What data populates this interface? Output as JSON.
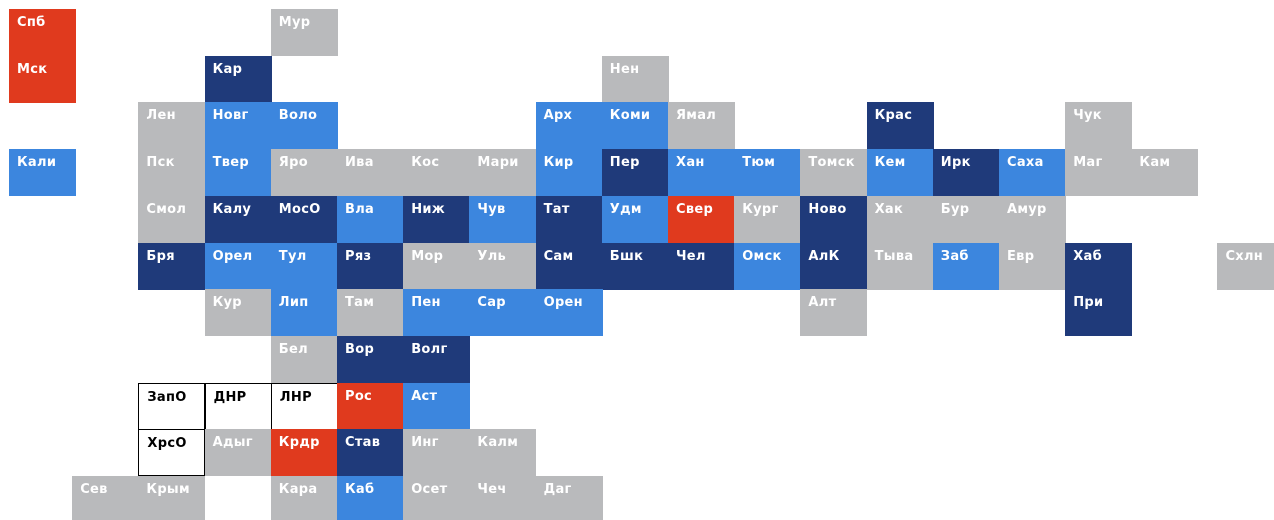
{
  "regions": [
    {
      "label": "Спб",
      "color": "#e03a1e"
    },
    {
      "label": "Мур",
      "color": "#b9babc"
    },
    {
      "label": "Мск",
      "color": "#e03a1e"
    },
    {
      "label": "Кар",
      "color": "#1f3a7a"
    },
    {
      "label": "Нен",
      "color": "#b9babc"
    },
    {
      "label": "Лен",
      "color": "#b9babc"
    },
    {
      "label": "Новг",
      "color": "#3c86de"
    },
    {
      "label": "Воло",
      "color": "#3c86de"
    },
    {
      "label": "Арх",
      "color": "#3c86de"
    },
    {
      "label": "Коми",
      "color": "#3c86de"
    },
    {
      "label": "Ямал",
      "color": "#b9babc"
    },
    {
      "label": "Крас",
      "color": "#1f3a7a"
    },
    {
      "label": "Чук",
      "color": "#b9babc"
    },
    {
      "label": "Кали",
      "color": "#3c86de"
    },
    {
      "label": "Пск",
      "color": "#b9babc"
    },
    {
      "label": "Твер",
      "color": "#3c86de"
    },
    {
      "label": "Яро",
      "color": "#b9babc"
    },
    {
      "label": "Ива",
      "color": "#b9babc"
    },
    {
      "label": "Кос",
      "color": "#b9babc"
    },
    {
      "label": "Мари",
      "color": "#b9babc"
    },
    {
      "label": "Кир",
      "color": "#3c86de"
    },
    {
      "label": "Пер",
      "color": "#1f3a7a"
    },
    {
      "label": "Хан",
      "color": "#3c86de"
    },
    {
      "label": "Тюм",
      "color": "#3c86de"
    },
    {
      "label": "Томск",
      "color": "#b9babc"
    },
    {
      "label": "Кем",
      "color": "#3c86de"
    },
    {
      "label": "Ирк",
      "color": "#1f3a7a"
    },
    {
      "label": "Саха",
      "color": "#3c86de"
    },
    {
      "label": "Маг",
      "color": "#b9babc"
    },
    {
      "label": "Кам",
      "color": "#b9babc"
    },
    {
      "label": "Смол",
      "color": "#b9babc"
    },
    {
      "label": "Калу",
      "color": "#1f3a7a"
    },
    {
      "label": "МосО",
      "color": "#1f3a7a"
    },
    {
      "label": "Вла",
      "color": "#3c86de"
    },
    {
      "label": "Ниж",
      "color": "#1f3a7a"
    },
    {
      "label": "Чув",
      "color": "#3c86de"
    },
    {
      "label": "Тат",
      "color": "#1f3a7a"
    },
    {
      "label": "Удм",
      "color": "#3c86de"
    },
    {
      "label": "Свер",
      "color": "#e03a1e"
    },
    {
      "label": "Кург",
      "color": "#b9babc"
    },
    {
      "label": "Ново",
      "color": "#1f3a7a"
    },
    {
      "label": "Хак",
      "color": "#b9babc"
    },
    {
      "label": "Бур",
      "color": "#b9babc"
    },
    {
      "label": "Амур",
      "color": "#b9babc"
    },
    {
      "label": "Бря",
      "color": "#1f3a7a"
    },
    {
      "label": "Орел",
      "color": "#3c86de"
    },
    {
      "label": "Тул",
      "color": "#3c86de"
    },
    {
      "label": "Ряз",
      "color": "#1f3a7a"
    },
    {
      "label": "Мор",
      "color": "#b9babc"
    },
    {
      "label": "Уль",
      "color": "#b9babc"
    },
    {
      "label": "Сам",
      "color": "#1f3a7a"
    },
    {
      "label": "Бшк",
      "color": "#1f3a7a"
    },
    {
      "label": "Чел",
      "color": "#1f3a7a"
    },
    {
      "label": "Омск",
      "color": "#3c86de"
    },
    {
      "label": "АлК",
      "color": "#1f3a7a"
    },
    {
      "label": "Тыва",
      "color": "#b9babc"
    },
    {
      "label": "Заб",
      "color": "#3c86de"
    },
    {
      "label": "Евр",
      "color": "#b9babc"
    },
    {
      "label": "Хаб",
      "color": "#1f3a7a"
    },
    {
      "label": "Схлн",
      "color": "#b9babc"
    },
    {
      "label": "Кур",
      "color": "#b9babc"
    },
    {
      "label": "Лип",
      "color": "#3c86de"
    },
    {
      "label": "Там",
      "color": "#b9babc"
    },
    {
      "label": "Пен",
      "color": "#3c86de"
    },
    {
      "label": "Сар",
      "color": "#3c86de"
    },
    {
      "label": "Орен",
      "color": "#3c86de"
    },
    {
      "label": "Алт",
      "color": "#b9babc"
    },
    {
      "label": "При",
      "color": "#1f3a7a"
    },
    {
      "label": "Бел",
      "color": "#b9babc"
    },
    {
      "label": "Вор",
      "color": "#1f3a7a"
    },
    {
      "label": "Волг",
      "color": "#1f3a7a"
    },
    {
      "label": "ЗапО",
      "color": "#ffffff"
    },
    {
      "label": "ДНР",
      "color": "#ffffff"
    },
    {
      "label": "ЛНР",
      "color": "#ffffff"
    },
    {
      "label": "Рос",
      "color": "#e03a1e"
    },
    {
      "label": "Аст",
      "color": "#3c86de"
    },
    {
      "label": "ХрсО",
      "color": "#ffffff"
    },
    {
      "label": "Адыг",
      "color": "#b9babc"
    },
    {
      "label": "Крдр",
      "color": "#e03a1e"
    },
    {
      "label": "Став",
      "color": "#1f3a7a"
    },
    {
      "label": "Инг",
      "color": "#b9babc"
    },
    {
      "label": "Калм",
      "color": "#b9babc"
    },
    {
      "label": "Сев",
      "color": "#b9babc"
    },
    {
      "label": "Крым",
      "color": "#b9babc"
    },
    {
      "label": "Кара",
      "color": "#b9babc"
    },
    {
      "label": "Каб",
      "color": "#3c86de"
    },
    {
      "label": "Осет",
      "color": "#b9babc"
    },
    {
      "label": "Чеч",
      "color": "#b9babc"
    },
    {
      "label": "Даг",
      "color": "#b9babc"
    }
  ]
}
